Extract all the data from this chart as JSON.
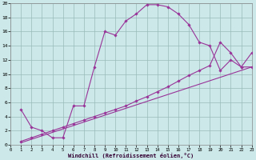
{
  "xlabel": "Windchill (Refroidissement éolien,°C)",
  "background_color": "#cce8e8",
  "line_color": "#993399",
  "grid_color": "#99bbbb",
  "xlim": [
    0,
    23
  ],
  "ylim": [
    0,
    20
  ],
  "yticks": [
    0,
    2,
    4,
    6,
    8,
    10,
    12,
    14,
    16,
    18,
    20
  ],
  "xticks": [
    0,
    1,
    2,
    3,
    4,
    5,
    6,
    7,
    8,
    9,
    10,
    11,
    12,
    13,
    14,
    15,
    16,
    17,
    18,
    19,
    20,
    21,
    22,
    23
  ],
  "curve1_x": [
    1,
    2,
    3,
    4,
    5,
    6,
    7,
    8,
    9,
    10,
    11,
    12,
    13,
    14,
    15,
    16,
    17,
    18,
    19,
    20,
    21,
    22,
    23
  ],
  "curve1_y": [
    5,
    2.5,
    2,
    1,
    1,
    5.5,
    5.5,
    11,
    16,
    15.5,
    17.5,
    18.5,
    19.8,
    19.8,
    19.5,
    18.5,
    17,
    14.5,
    14,
    10.5,
    12,
    11,
    11
  ],
  "curve2_x": [
    1,
    2,
    3,
    4,
    5,
    6,
    7,
    8,
    9,
    10,
    11,
    12,
    13,
    14,
    15,
    16,
    17,
    18,
    19,
    20,
    21,
    22,
    23
  ],
  "curve2_y": [
    0.5,
    1.0,
    1.5,
    2.0,
    2.5,
    3.0,
    3.5,
    4.0,
    4.5,
    5.0,
    5.5,
    6.2,
    6.8,
    7.5,
    8.2,
    9.0,
    9.8,
    10.5,
    11.2,
    14.5,
    13.0,
    11.0,
    13.0
  ],
  "curve3_x": [
    1,
    23
  ],
  "curve3_y": [
    0.3,
    11.0
  ]
}
